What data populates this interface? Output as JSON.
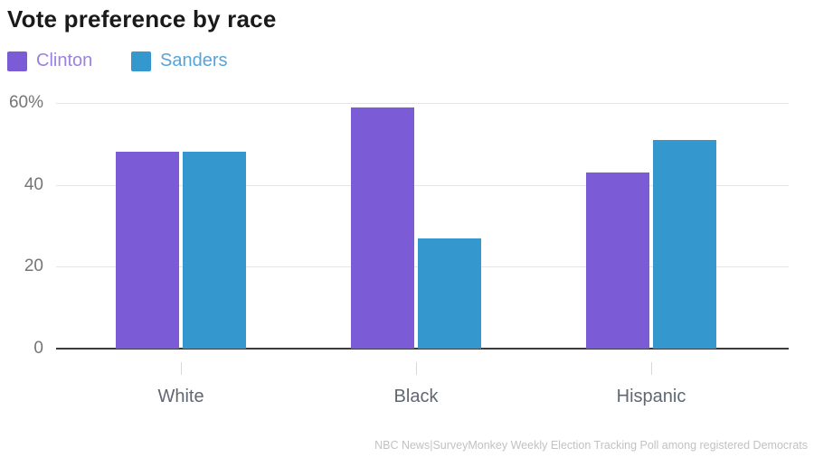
{
  "title": "Vote preference by race",
  "legend": {
    "items": [
      {
        "label": "Clinton",
        "swatch_color": "#7B5CD6",
        "text_color": "#9C81E2"
      },
      {
        "label": "Sanders",
        "swatch_color": "#3498CE",
        "text_color": "#55A4DB"
      }
    ]
  },
  "source": "NBC News|SurveyMonkey Weekly Election Tracking Poll among registered Democrats",
  "chart_data": {
    "type": "bar",
    "title": "Vote preference by race",
    "categories": [
      "White",
      "Black",
      "Hispanic"
    ],
    "series": [
      {
        "name": "Clinton",
        "color": "#7B5CD6",
        "values": [
          48,
          59,
          43
        ]
      },
      {
        "name": "Sanders",
        "color": "#3498CE",
        "values": [
          48,
          27,
          51
        ]
      }
    ],
    "xlabel": "",
    "ylabel": "",
    "ylim": [
      0,
      60
    ],
    "yticks": [
      {
        "value": 0,
        "label": "0"
      },
      {
        "value": 20,
        "label": "20"
      },
      {
        "value": 40,
        "label": "40"
      },
      {
        "value": 60,
        "label": "60%"
      }
    ],
    "grid": true,
    "legend_position": "top-left"
  }
}
